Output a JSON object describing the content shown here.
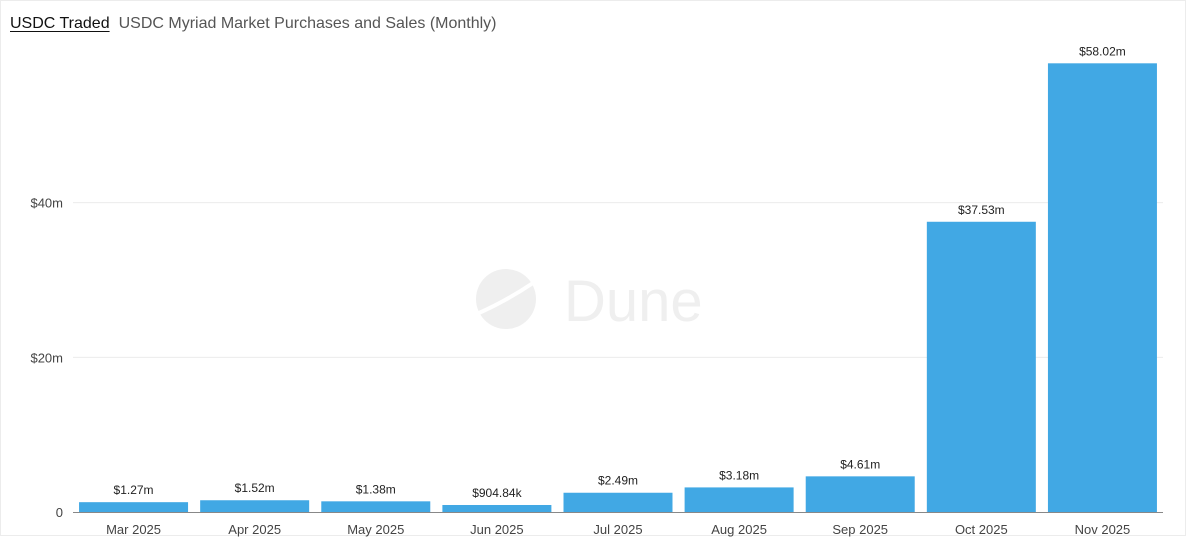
{
  "header": {
    "tab_label": "USDC Traded",
    "title": "USDC Myriad Market Purchases and Sales (Monthly)"
  },
  "watermark": {
    "text": "Dune"
  },
  "colors": {
    "bar": "#41a8e4",
    "grid": "#ebebeb",
    "axis_text": "#444444",
    "label_text": "#222222",
    "watermark": "#f0f0f0"
  },
  "chart_data": {
    "type": "bar",
    "categories": [
      "Mar 2025",
      "Apr 2025",
      "May 2025",
      "Jun 2025",
      "Jul 2025",
      "Aug 2025",
      "Sep 2025",
      "Oct 2025",
      "Nov 2025"
    ],
    "values": [
      1.27,
      1.52,
      1.38,
      0.90484,
      2.49,
      3.18,
      4.61,
      37.53,
      58.02
    ],
    "value_labels": [
      "$1.27m",
      "$1.52m",
      "$1.38m",
      "$904.84k",
      "$2.49m",
      "$3.18m",
      "$4.61m",
      "$37.53m",
      "$58.02m"
    ],
    "yticks": [
      0,
      20,
      40
    ],
    "ytick_labels": [
      "0",
      "$20m",
      "$40m"
    ],
    "ylim": [
      0,
      60
    ],
    "grid": true,
    "legend": false
  }
}
